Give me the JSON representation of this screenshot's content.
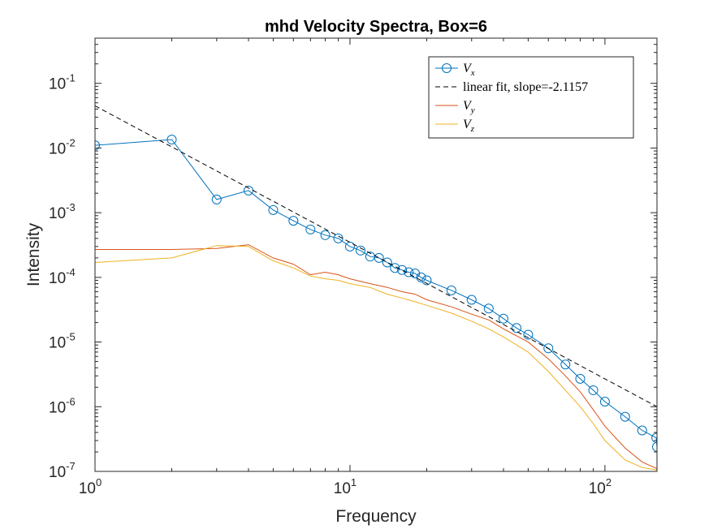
{
  "chart_data": {
    "type": "line",
    "title": "mhd Velocity Spectra, Box=6",
    "xlabel": "Frequency",
    "ylabel": "Intensity",
    "xscale": "log",
    "yscale": "log",
    "xlim": [
      1,
      160
    ],
    "ylim": [
      1e-07,
      0.5
    ],
    "xticks": [
      {
        "value": 1,
        "base": "10",
        "exp": "0"
      },
      {
        "value": 10,
        "base": "10",
        "exp": "1"
      },
      {
        "value": 100,
        "base": "10",
        "exp": "2"
      }
    ],
    "yticks": [
      {
        "value": 1e-07,
        "base": "10",
        "exp": "-7"
      },
      {
        "value": 1e-06,
        "base": "10",
        "exp": "-6"
      },
      {
        "value": 1e-05,
        "base": "10",
        "exp": "-5"
      },
      {
        "value": 0.0001,
        "base": "10",
        "exp": "-4"
      },
      {
        "value": 0.001,
        "base": "10",
        "exp": "-3"
      },
      {
        "value": 0.01,
        "base": "10",
        "exp": "-2"
      },
      {
        "value": 0.1,
        "base": "10",
        "exp": "-1"
      }
    ],
    "grid": false,
    "legend_position": "top-right",
    "series": [
      {
        "name_symbol": "V",
        "name_sub": "x",
        "style": "line-circle",
        "color": "#0072BD",
        "x": [
          1,
          2,
          3,
          4,
          5,
          6,
          7,
          8,
          9,
          10,
          11,
          12,
          13,
          14,
          15,
          16,
          17,
          18,
          19,
          20,
          25,
          30,
          35,
          40,
          45,
          50,
          60,
          70,
          80,
          90,
          100,
          120,
          140,
          159,
          160
        ],
        "y": [
          0.011,
          0.0135,
          0.0016,
          0.0022,
          0.0011,
          0.00075,
          0.00055,
          0.00045,
          0.0004,
          0.0003,
          0.00026,
          0.00021,
          0.0002,
          0.00017,
          0.00014,
          0.00013,
          0.00012,
          0.000115,
          0.0001,
          9e-05,
          6.3e-05,
          4.5e-05,
          3.3e-05,
          2.3e-05,
          1.65e-05,
          1.3e-05,
          8e-06,
          4.5e-06,
          2.7e-06,
          1.8e-06,
          1.2e-06,
          7e-07,
          4.3e-07,
          3.3e-07,
          2.4e-07
        ]
      },
      {
        "name": "linear fit, slope=-2.1157",
        "style": "dashed",
        "color": "#000000",
        "slope": -2.1157,
        "x": [
          1,
          160
        ],
        "y": [
          0.045,
          1e-06
        ]
      },
      {
        "name_symbol": "V",
        "name_sub": "y",
        "style": "line",
        "color": "#D95319",
        "x": [
          1,
          2,
          3,
          4,
          5,
          6,
          7,
          8,
          9,
          10,
          12,
          14,
          16,
          18,
          20,
          25,
          30,
          35,
          40,
          50,
          60,
          70,
          80,
          90,
          100,
          120,
          140,
          160
        ],
        "y": [
          0.00027,
          0.00027,
          0.00028,
          0.00032,
          0.0002,
          0.00016,
          0.00011,
          0.00012,
          0.00011,
          9.5e-05,
          8e-05,
          7e-05,
          6e-05,
          5.5e-05,
          4.5e-05,
          3.5e-05,
          2.7e-05,
          2.2e-05,
          1.6e-05,
          1e-05,
          5.5e-06,
          3e-06,
          1.7e-06,
          9e-07,
          5e-07,
          2.3e-07,
          1.4e-07,
          1.1e-07
        ]
      },
      {
        "name_symbol": "V",
        "name_sub": "z",
        "style": "line",
        "color": "#EDB120",
        "x": [
          1,
          2,
          3,
          4,
          5,
          6,
          7,
          8,
          9,
          10,
          12,
          14,
          16,
          18,
          20,
          25,
          30,
          35,
          40,
          50,
          60,
          70,
          80,
          90,
          100,
          120,
          140,
          160
        ],
        "y": [
          0.00017,
          0.0002,
          0.00031,
          0.0003,
          0.00018,
          0.00014,
          0.000105,
          9.5e-05,
          9e-05,
          8e-05,
          7e-05,
          5.5e-05,
          4.8e-05,
          4.2e-05,
          3.7e-05,
          2.8e-05,
          2.1e-05,
          1.6e-05,
          1.2e-05,
          7e-06,
          3.5e-06,
          1.8e-06,
          1e-06,
          5.5e-07,
          3e-07,
          1.5e-07,
          1.15e-07,
          1.05e-07
        ]
      }
    ]
  }
}
